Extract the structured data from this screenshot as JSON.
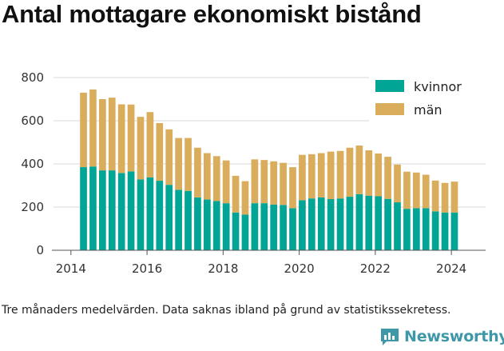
{
  "colors": {
    "kvinnor": "#00a596",
    "man": "#d9ad5b",
    "grid": "#d9d9d9",
    "axis": "#555555",
    "brand": "#3f98a8"
  },
  "footnote": "Tre månaders medelvärden. Data saknas ibland på grund av statistikssekretess.",
  "brand": {
    "name": "Newsworthy",
    "icon": "newsworthy-logo-icon"
  },
  "chart_data": {
    "type": "bar",
    "stacked": true,
    "title": "Antal mottagare ekonomiskt bistånd",
    "xlabel": "",
    "ylabel": "",
    "ylim": [
      0,
      800
    ],
    "yticks": [
      "0",
      "200",
      "400",
      "600",
      "800"
    ],
    "xticks": [
      "2014",
      "2016",
      "2018",
      "2020",
      "2022",
      "2024"
    ],
    "x_range": [
      2013.5,
      2024.9
    ],
    "grid": true,
    "legend_position": "top-right",
    "x": [
      2014.33,
      2014.58,
      2014.83,
      2015.08,
      2015.33,
      2015.58,
      2015.83,
      2016.08,
      2016.33,
      2016.58,
      2016.83,
      2017.08,
      2017.33,
      2017.58,
      2017.83,
      2018.08,
      2018.33,
      2018.58,
      2018.83,
      2019.08,
      2019.33,
      2019.58,
      2019.83,
      2020.08,
      2020.33,
      2020.58,
      2020.83,
      2021.08,
      2021.33,
      2021.58,
      2021.83,
      2022.08,
      2022.33,
      2022.58,
      2022.83,
      2023.08,
      2023.33,
      2023.58,
      2023.83,
      2024.08
    ],
    "series": [
      {
        "name": "kvinnor",
        "values": [
          385,
          388,
          370,
          370,
          358,
          365,
          328,
          338,
          322,
          303,
          280,
          275,
          245,
          235,
          228,
          218,
          175,
          165,
          218,
          218,
          212,
          210,
          195,
          232,
          240,
          245,
          237,
          240,
          248,
          260,
          253,
          250,
          238,
          222,
          192,
          195,
          195,
          180,
          175,
          175
        ]
      },
      {
        "name": "män",
        "values": [
          345,
          357,
          330,
          337,
          318,
          310,
          290,
          302,
          267,
          257,
          240,
          245,
          230,
          215,
          208,
          198,
          170,
          155,
          203,
          200,
          200,
          195,
          190,
          210,
          205,
          205,
          220,
          220,
          227,
          225,
          210,
          198,
          195,
          175,
          172,
          165,
          155,
          143,
          137,
          143
        ]
      }
    ]
  }
}
